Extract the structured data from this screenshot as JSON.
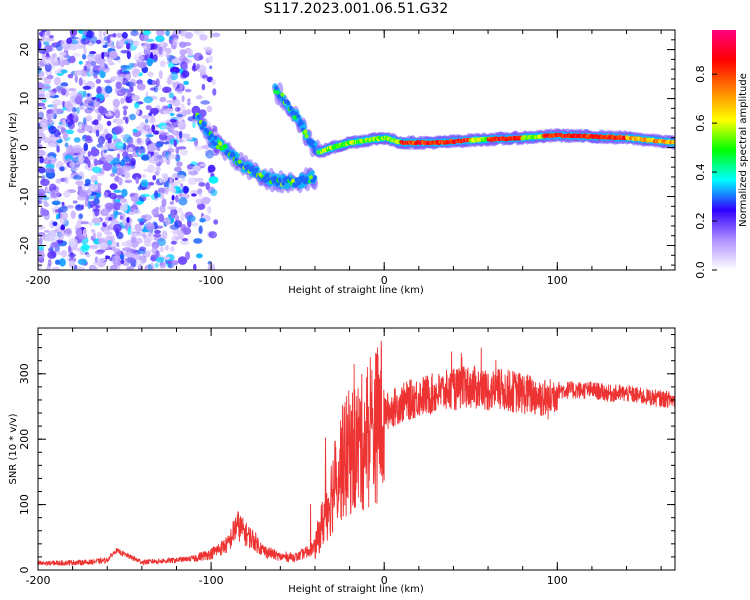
{
  "title": "S117.2023.001.06.51.G32",
  "chart_data": [
    {
      "type": "heatmap",
      "xlabel": "Height of straight line (km)",
      "ylabel": "Frequency (Hz)",
      "xlim": [
        -200,
        168
      ],
      "ylim": [
        -25,
        24
      ],
      "x_ticks": [
        -200,
        -100,
        0,
        100
      ],
      "y_ticks": [
        -20,
        -10,
        0,
        10,
        20
      ],
      "colorbar": {
        "label": "Normalized spectral amplitude",
        "range": [
          0,
          1
        ],
        "ticks": [
          "0.0",
          "0.2",
          "0.4",
          "0.6",
          "0.8"
        ],
        "colors": [
          "#ffffff",
          "#b090ff",
          "#3000ff",
          "#00ffff",
          "#00ff00",
          "#ffff00",
          "#ff8000",
          "#ff0000",
          "#ff0080"
        ]
      },
      "features": [
        {
          "name": "noise",
          "x": [
            -200,
            -105
          ],
          "y": [
            -25,
            24
          ],
          "amplitude": 0.25
        },
        {
          "name": "upper-branch",
          "points": [
            [
              -63,
              12
            ],
            [
              -58,
              10
            ],
            [
              -50,
              6
            ],
            [
              -44,
              2
            ],
            [
              -38,
              -1
            ]
          ],
          "amplitude": 0.5
        },
        {
          "name": "lower-branch",
          "points": [
            [
              -108,
              6
            ],
            [
              -100,
              2
            ],
            [
              -90,
              -1
            ],
            [
              -80,
              -4
            ],
            [
              -70,
              -6
            ],
            [
              -60,
              -7
            ],
            [
              -50,
              -7
            ],
            [
              -40,
              -6
            ]
          ],
          "amplitude": 0.5
        },
        {
          "name": "main-line",
          "points": [
            [
              -38,
              -1
            ],
            [
              -30,
              0
            ],
            [
              -20,
              1
            ],
            [
              0,
              2
            ],
            [
              10,
              1
            ],
            [
              30,
              1
            ],
            [
              50,
              1.5
            ],
            [
              80,
              2
            ],
            [
              100,
              2.5
            ],
            [
              140,
              2
            ],
            [
              168,
              1
            ]
          ],
          "amplitude": 0.9
        }
      ]
    },
    {
      "type": "line",
      "xlabel": "Height of straight line (km)",
      "ylabel": "SNR (10 * v/v)",
      "xlim": [
        -200,
        168
      ],
      "ylim": [
        0,
        370
      ],
      "x_ticks": [
        -200,
        -100,
        0,
        100
      ],
      "y_ticks": [
        0,
        100,
        200,
        300
      ],
      "color": "#ee3333",
      "envelope": {
        "x": [
          -200,
          -170,
          -160,
          -155,
          -140,
          -120,
          -110,
          -100,
          -90,
          -85,
          -80,
          -75,
          -70,
          -60,
          -50,
          -40,
          -30,
          -25,
          -20,
          -15,
          -10,
          -5,
          0,
          10,
          20,
          30,
          40,
          50,
          60,
          70,
          80,
          90,
          95,
          100,
          110,
          120,
          130,
          140,
          150,
          160,
          168
        ],
        "y": [
          10,
          12,
          15,
          30,
          12,
          15,
          18,
          25,
          40,
          70,
          55,
          45,
          30,
          20,
          20,
          35,
          120,
          160,
          180,
          190,
          200,
          220,
          240,
          255,
          265,
          270,
          275,
          280,
          275,
          275,
          270,
          265,
          260,
          275,
          275,
          275,
          270,
          270,
          265,
          262,
          260
        ]
      }
    }
  ]
}
